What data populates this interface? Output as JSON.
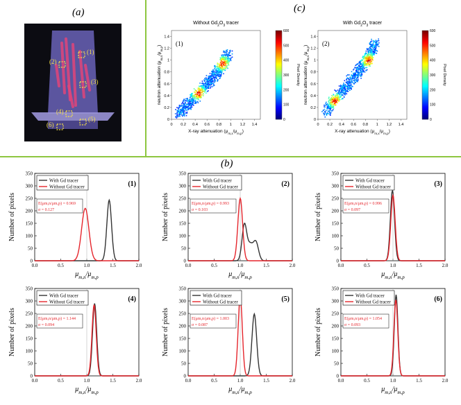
{
  "labels": {
    "a": "(a)",
    "b": "(b)",
    "c": "(c)"
  },
  "colors": {
    "divider": "#8dc63f",
    "with": "#333333",
    "without": "#e5242b",
    "annotation": "#e5242b",
    "photo_bg": "#0c0c12",
    "photo_part": "#6a63b8",
    "photo_hot": "#e0457a",
    "photo_roi": "#f5e04a"
  },
  "photo": {
    "roi_labels": [
      "(1)",
      "(2)",
      "(3)",
      "(4)",
      "(5)",
      "(6)"
    ]
  },
  "scatter_common": {
    "xlabel": "X-ray attenuation (μm,x/μm,p)",
    "ylabel": "neutron attenuation (μm,n/μm,p)",
    "colorbar_label": "Pixel Density",
    "colorbar_ticks": [
      "0",
      "100",
      "200",
      "300",
      "400",
      "500",
      "600"
    ],
    "x_ticks": [
      "0",
      "0.2",
      "0.4",
      "0.6",
      "0.8",
      "1",
      "1.2",
      "1.4"
    ],
    "y_ticks": [
      "0",
      "0.2",
      "0.4",
      "0.6",
      "0.8",
      "1",
      "1.2",
      "1.4"
    ]
  },
  "chart_data": [
    {
      "type": "heatmap",
      "panel": "(1)",
      "title": "Without Gd2O3 tracer",
      "title_main": "Without Gd",
      "title_sub": "2",
      "title_mid": "O",
      "title_sub2": "3",
      "title_end": " tracer",
      "xlim": [
        0,
        1.5
      ],
      "ylim": [
        0,
        1.5
      ],
      "trend": [
        [
          0.12,
          0.1
        ],
        [
          0.3,
          0.3
        ],
        [
          0.5,
          0.5
        ],
        [
          0.7,
          0.72
        ],
        [
          0.85,
          0.92
        ],
        [
          0.95,
          1.12
        ]
      ],
      "hotspots": [
        [
          0.45,
          0.45
        ],
        [
          0.85,
          0.95
        ]
      ],
      "colorbar_range": [
        0,
        600
      ]
    },
    {
      "type": "heatmap",
      "panel": "(2)",
      "title": "With Gd2O3 tracer",
      "title_main": "With Gd",
      "title_sub": "2",
      "title_mid": "O",
      "title_sub2": "3",
      "title_end": " tracer",
      "xlim": [
        0,
        1.5
      ],
      "ylim": [
        0,
        1.5
      ],
      "trend": [
        [
          0.12,
          0.12
        ],
        [
          0.3,
          0.38
        ],
        [
          0.5,
          0.6
        ],
        [
          0.7,
          0.85
        ],
        [
          0.85,
          1.05
        ],
        [
          0.95,
          1.3
        ]
      ],
      "hotspots": [
        [
          0.28,
          0.32
        ],
        [
          0.85,
          1.0
        ]
      ],
      "colorbar_range": [
        0,
        600
      ]
    },
    {
      "type": "line",
      "panel": "(1)",
      "xlabel": "μm,n/μm,p",
      "ylabel": "Number of pixels",
      "xlim": [
        0,
        2.0
      ],
      "ylim": [
        0,
        350
      ],
      "x_ticks": [
        "0.0",
        "0.5",
        "1.0",
        "1.5",
        "2.0"
      ],
      "y_ticks": [
        "0",
        "50",
        "100",
        "150",
        "200",
        "250",
        "300",
        "350"
      ],
      "legend": [
        "With Gd tracer",
        "Without Gd tracer"
      ],
      "annotation": {
        "E": "E(μm,n/μm,p) = 0.969",
        "sigma": "σ = 0.127"
      },
      "series": [
        {
          "name": "With Gd tracer",
          "peaks": [
            {
              "mu": 1.43,
              "sd": 0.045,
              "amp": 243
            }
          ]
        },
        {
          "name": "Without Gd tracer",
          "peaks": [
            {
              "mu": 0.97,
              "sd": 0.07,
              "amp": 210
            }
          ]
        }
      ]
    },
    {
      "type": "line",
      "panel": "(2)",
      "xlabel": "μm,n/μm,p",
      "ylabel": "Number of pixels",
      "xlim": [
        0,
        2.0
      ],
      "ylim": [
        0,
        350
      ],
      "x_ticks": [
        "0.0",
        "0.5",
        "1.0",
        "1.5",
        "2.0"
      ],
      "y_ticks": [
        "0",
        "50",
        "100",
        "150",
        "200",
        "250",
        "300",
        "350"
      ],
      "legend": [
        "With Gd tracer",
        "Without Gd tracer"
      ],
      "annotation": {
        "E": "E(μm,n/μm,p) = 0.993",
        "sigma": "σ = 0.103"
      },
      "series": [
        {
          "name": "With Gd tracer",
          "peaks": [
            {
              "mu": 1.08,
              "sd": 0.045,
              "amp": 145
            },
            {
              "mu": 1.3,
              "sd": 0.05,
              "amp": 75
            },
            {
              "mu": 1.19,
              "sd": 0.05,
              "amp": 60
            }
          ]
        },
        {
          "name": "Without Gd tracer",
          "peaks": [
            {
              "mu": 1.0,
              "sd": 0.045,
              "amp": 250
            }
          ]
        }
      ]
    },
    {
      "type": "line",
      "panel": "(3)",
      "xlabel": "μm,n/μm,p",
      "ylabel": "Number of pixels",
      "xlim": [
        0,
        2.0
      ],
      "ylim": [
        0,
        350
      ],
      "x_ticks": [
        "0.0",
        "0.5",
        "1.0",
        "1.5",
        "2.0"
      ],
      "y_ticks": [
        "0",
        "50",
        "100",
        "150",
        "200",
        "250",
        "300",
        "350"
      ],
      "legend": [
        "With Gd tracer",
        "Without Gd tracer"
      ],
      "annotation": {
        "E": "E(μm,n/μm,p) = 0.996",
        "sigma": "σ = 0.097"
      },
      "series": [
        {
          "name": "With Gd tracer",
          "peaks": [
            {
              "mu": 0.99,
              "sd": 0.04,
              "amp": 282
            }
          ]
        },
        {
          "name": "Without Gd tracer",
          "peaks": [
            {
              "mu": 1.0,
              "sd": 0.042,
              "amp": 262
            }
          ]
        }
      ]
    },
    {
      "type": "line",
      "panel": "(4)",
      "xlabel": "μm,n/μm,p",
      "ylabel": "Number of pixels",
      "xlim": [
        0,
        2.0
      ],
      "ylim": [
        0,
        350
      ],
      "x_ticks": [
        "0.0",
        "0.5",
        "1.0",
        "1.5",
        "2.0"
      ],
      "y_ticks": [
        "0",
        "50",
        "100",
        "150",
        "200",
        "250",
        "300",
        "350"
      ],
      "legend": [
        "With Gd tracer",
        "Without Gd tracer"
      ],
      "annotation": {
        "E": "E(μm,n/μm,p) = 1.144",
        "sigma": "σ = 0.094"
      },
      "series": [
        {
          "name": "With Gd tracer",
          "peaks": [
            {
              "mu": 1.15,
              "sd": 0.04,
              "amp": 290
            }
          ]
        },
        {
          "name": "Without Gd tracer",
          "peaks": [
            {
              "mu": 1.14,
              "sd": 0.04,
              "amp": 285
            }
          ]
        }
      ]
    },
    {
      "type": "line",
      "panel": "(5)",
      "xlabel": "μm,n/μm,p",
      "ylabel": "Number of pixels",
      "xlim": [
        0,
        2.0
      ],
      "ylim": [
        0,
        350
      ],
      "x_ticks": [
        "0.0",
        "0.5",
        "1.0",
        "1.5",
        "2.0"
      ],
      "y_ticks": [
        "0",
        "50",
        "100",
        "150",
        "200",
        "250",
        "300",
        "350"
      ],
      "legend": [
        "With Gd tracer",
        "Without Gd tracer"
      ],
      "annotation": {
        "E": "E(μm,n/μm,p) = 1.003",
        "sigma": "σ = 0.087"
      },
      "series": [
        {
          "name": "With Gd tracer",
          "peaks": [
            {
              "mu": 1.27,
              "sd": 0.045,
              "amp": 248
            }
          ]
        },
        {
          "name": "Without Gd tracer",
          "peaks": [
            {
              "mu": 1.0,
              "sd": 0.04,
              "amp": 318
            }
          ]
        }
      ]
    },
    {
      "type": "line",
      "panel": "(6)",
      "xlabel": "μm,n/μm,p",
      "ylabel": "Number of pixels",
      "xlim": [
        0,
        2.0
      ],
      "ylim": [
        0,
        350
      ],
      "x_ticks": [
        "0.0",
        "0.5",
        "1.0",
        "1.5",
        "2.0"
      ],
      "y_ticks": [
        "0",
        "50",
        "100",
        "150",
        "200",
        "250",
        "300",
        "350"
      ],
      "legend": [
        "With Gd tracer",
        "Without Gd tracer"
      ],
      "annotation": {
        "E": "E(μm,n/μm,p) = 1.054",
        "sigma": "σ = 0.093"
      },
      "series": [
        {
          "name": "With Gd tracer",
          "peaks": [
            {
              "mu": 1.06,
              "sd": 0.035,
              "amp": 325
            }
          ]
        },
        {
          "name": "Without Gd tracer",
          "peaks": [
            {
              "mu": 1.055,
              "sd": 0.037,
              "amp": 305
            }
          ]
        }
      ]
    }
  ]
}
